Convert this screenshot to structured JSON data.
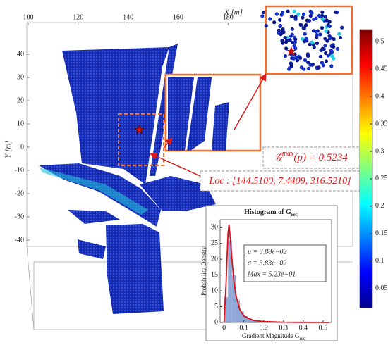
{
  "chart_data": [
    {
      "type": "pointcloud",
      "xlabel": "X [m]",
      "ylabel": "Y [m]",
      "xlim": [
        98,
        190
      ],
      "xticks": [
        100,
        120,
        140,
        160,
        180
      ],
      "ylim": [
        -50,
        48
      ],
      "yticks": [
        -40,
        -30,
        -20,
        -10,
        0,
        10,
        20,
        30,
        40
      ],
      "colormap": "jet",
      "clim": [
        0.015,
        0.522
      ],
      "cticks": [
        0.05,
        0.1,
        0.15,
        0.2,
        0.25,
        0.3,
        0.35,
        0.4,
        0.45,
        0.5
      ],
      "max_point": {
        "x": 144.51,
        "y": 7.4409
      },
      "gmax": {
        "symbol": "𝒢",
        "superscript": "max",
        "text": "(p) = 0.5234"
      },
      "loc": "Loc : [144.5100, 7.4409, 316.5210]"
    },
    {
      "type": "histogram",
      "title": "Histogram of G",
      "title_subscript": "rec",
      "xlabel": "Gradient Magnitude G",
      "xlabel_subscript": "rec",
      "ylabel": "Probability Density",
      "xlim": [
        -0.02,
        0.543
      ],
      "xticks": [
        0,
        0.1,
        0.2,
        0.3,
        0.4,
        0.5
      ],
      "ylim": [
        0,
        32.5
      ],
      "yticks": [
        0,
        5,
        10,
        15,
        20,
        25,
        30
      ],
      "bins": [
        0,
        0.02,
        0.04,
        0.06,
        0.08,
        0.1,
        0.12,
        0.14,
        0.16,
        0.18,
        0.2,
        0.22,
        0.24,
        0.26,
        0.28,
        0.3,
        0.32,
        0.34,
        0.36,
        0.38,
        0.4,
        0.42,
        0.44,
        0.46,
        0.48,
        0.5,
        0.52,
        0.54
      ],
      "counts": [
        8,
        26,
        15,
        7,
        3.5,
        2,
        1.2,
        0.8,
        0.5,
        0.3,
        0.2,
        0.15,
        0.1,
        0.1,
        0.08,
        0.06,
        0.05,
        0.04,
        0.03,
        0.02,
        0.02,
        0.01,
        0.01,
        0.01,
        0.01,
        0.01,
        0.01
      ],
      "color": "#8fa8d8",
      "curve": {
        "color": "#e0101a",
        "x": [
          0,
          0.01,
          0.02,
          0.025,
          0.03,
          0.04,
          0.05,
          0.06,
          0.08,
          0.1,
          0.15,
          0.2,
          0.3,
          0.4,
          0.5,
          0.53
        ],
        "y": [
          0,
          12,
          28,
          31,
          28,
          20,
          13,
          8.5,
          4,
          2,
          0.6,
          0.3,
          0.1,
          0.05,
          0.02,
          0.01
        ]
      },
      "stats": [
        "μ = 3.88e−02",
        "σ = 3.83e−02",
        "Max = 5.23e−01"
      ]
    }
  ]
}
